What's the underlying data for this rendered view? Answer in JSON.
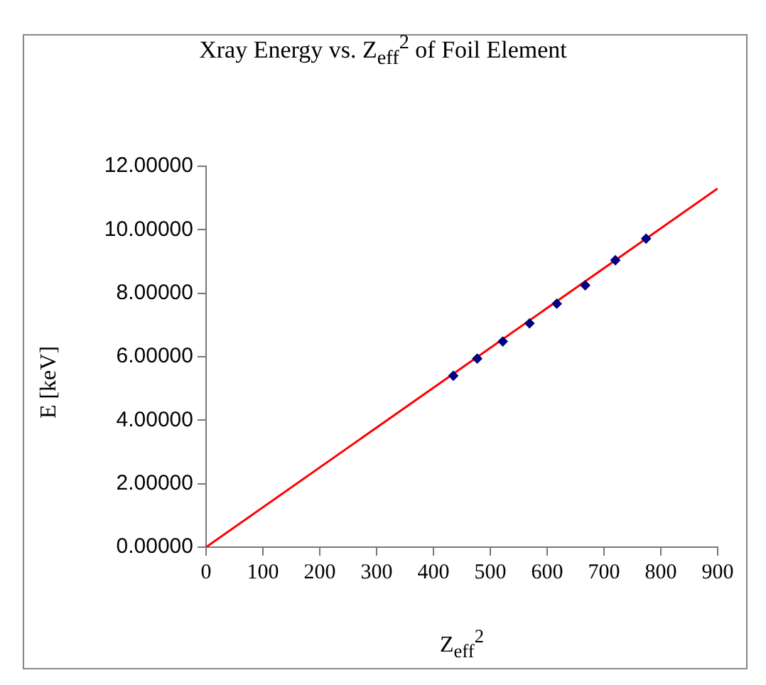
{
  "chart_data": {
    "type": "scatter",
    "title": "Xray Energy vs. Z$_{eff}$$^{2}$ of Foil Element",
    "xlabel": "Z$_{eff}$$^{2}$",
    "ylabel": "E [keV]",
    "series": [
      {
        "color": "#000080",
        "marker": "diamond",
        "x": [
          435,
          477,
          522,
          569,
          617,
          667,
          720,
          774
        ],
        "values": [
          5.4,
          5.94,
          6.48,
          7.05,
          7.67,
          8.25,
          9.04,
          9.72
        ]
      },
      {
        "type": "line",
        "marker": "none",
        "color": "#ff0000",
        "x": [
          0,
          900
        ],
        "values": [
          0,
          11.3
        ]
      }
    ],
    "xlim": [
      0,
      900
    ],
    "xticks": [
      0,
      100,
      200,
      300,
      400,
      500,
      600,
      700,
      800,
      900
    ],
    "ylim": [
      0,
      12
    ],
    "yticks": [
      {
        "value": 0,
        "label": "0.00000"
      },
      {
        "value": 2,
        "label": "2.00000"
      },
      {
        "value": 4,
        "label": "4.00000"
      },
      {
        "value": 6,
        "label": "6.00000"
      },
      {
        "value": 8,
        "label": "8.00000"
      },
      {
        "value": 10,
        "label": "10.00000"
      },
      {
        "value": 12,
        "label": "12.00000"
      }
    ],
    "grid": false,
    "legend": false,
    "line_style": "solid"
  }
}
